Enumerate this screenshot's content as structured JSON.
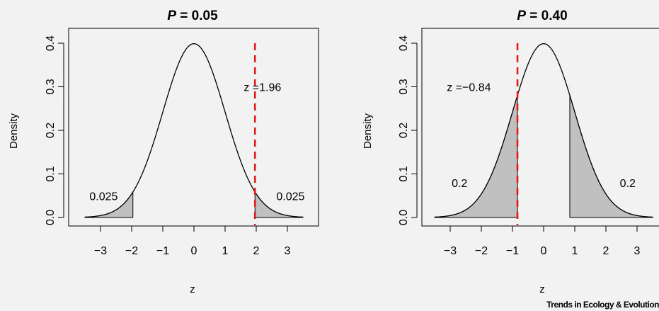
{
  "source_label": "Trends in Ecology & Evolution",
  "colors": {
    "fill": "#c0c0c0",
    "line": "#000000",
    "critical": "#e41a1c",
    "background": "#f2f2f2"
  },
  "chart_data": [
    {
      "type": "area",
      "title_prefix": "P",
      "title_value": " = 0.05",
      "xlabel": "z",
      "ylabel": "Density",
      "xlim": [
        -3.5,
        3.5
      ],
      "ylim": [
        0,
        0.4
      ],
      "xticks": [
        -3,
        -2,
        -1,
        0,
        1,
        2,
        3
      ],
      "xtick_labels": [
        "−3",
        "−2",
        "−1",
        "0",
        "1",
        "2",
        "3"
      ],
      "yticks": [
        0,
        0.1,
        0.2,
        0.3,
        0.4
      ],
      "ytick_labels": [
        "0.0",
        "0.1",
        "0.2",
        "0.3",
        "0.4"
      ],
      "curve": "standard normal density",
      "shaded_regions": [
        [
          -3.5,
          -1.96
        ],
        [
          1.96,
          3.5
        ]
      ],
      "critical_line": {
        "x": 1.96,
        "style": "dashed"
      },
      "annotations": [
        {
          "text": "z =1.96",
          "x": 2.2,
          "y": 0.3
        },
        {
          "text": "0.025",
          "x": -2.9,
          "y": 0.05
        },
        {
          "text": "0.025",
          "x": 3.1,
          "y": 0.05
        }
      ]
    },
    {
      "type": "area",
      "title_prefix": "P",
      "title_value": " = 0.40",
      "xlabel": "z",
      "ylabel": "Density",
      "xlim": [
        -3.5,
        3.5
      ],
      "ylim": [
        0,
        0.4
      ],
      "xticks": [
        -3,
        -2,
        -1,
        0,
        1,
        2,
        3
      ],
      "xtick_labels": [
        "−3",
        "−2",
        "−1",
        "0",
        "1",
        "2",
        "3"
      ],
      "yticks": [
        0,
        0.1,
        0.2,
        0.3,
        0.4
      ],
      "ytick_labels": [
        "0.0",
        "0.1",
        "0.2",
        "0.3",
        "0.4"
      ],
      "curve": "standard normal density",
      "shaded_regions": [
        [
          -3.5,
          -0.84
        ],
        [
          0.84,
          3.5
        ]
      ],
      "critical_line": {
        "x": -0.84,
        "style": "dashed"
      },
      "annotations": [
        {
          "text": "z =−0.84",
          "x": -2.4,
          "y": 0.3
        },
        {
          "text": "0.2",
          "x": -2.7,
          "y": 0.08
        },
        {
          "text": "0.2",
          "x": 2.7,
          "y": 0.08
        }
      ]
    }
  ]
}
